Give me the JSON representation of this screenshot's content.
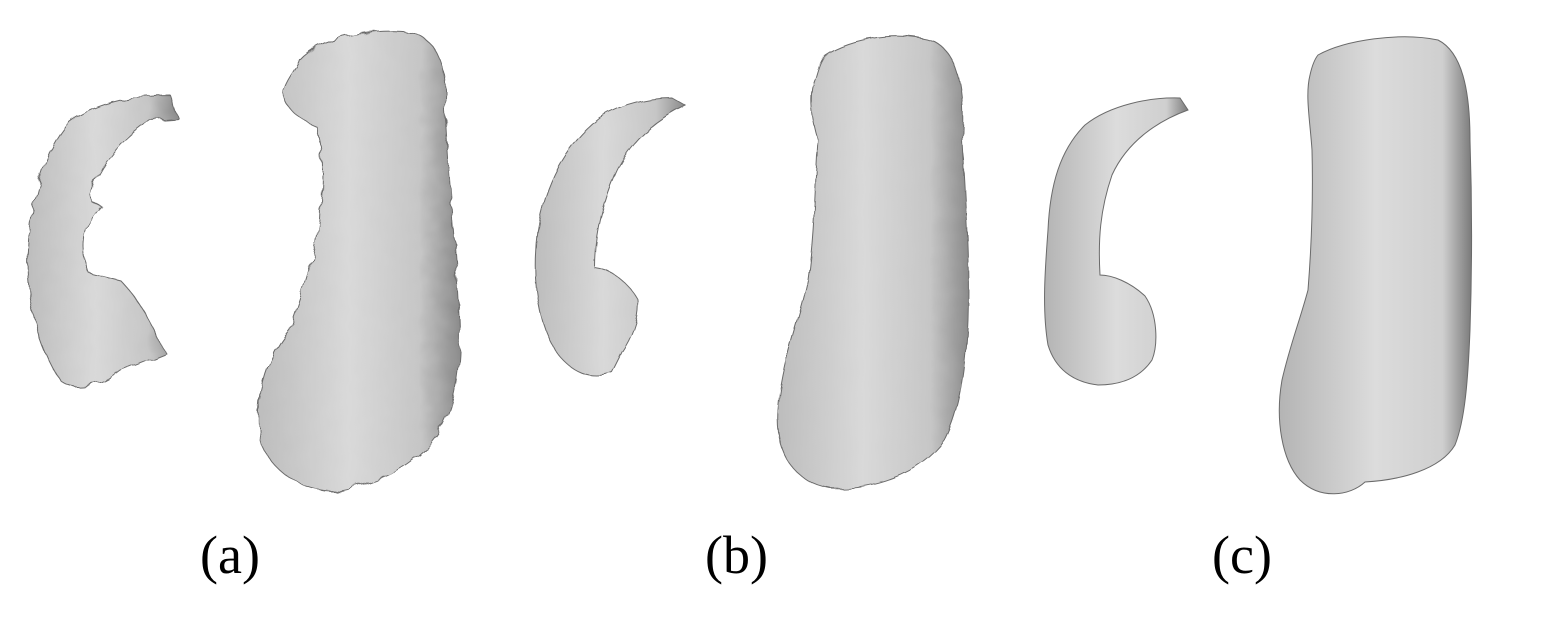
{
  "panels": [
    {
      "id": "a",
      "caption": "(a)"
    },
    {
      "id": "b",
      "caption": "(b)"
    },
    {
      "id": "c",
      "caption": "(c)"
    }
  ],
  "colors": {
    "background": "#ffffff",
    "surface_light": "#d8d8d8",
    "surface_mid": "#b9b9b9",
    "surface_dark": "#6f6f6f",
    "shadow": "#2a2a2a"
  }
}
